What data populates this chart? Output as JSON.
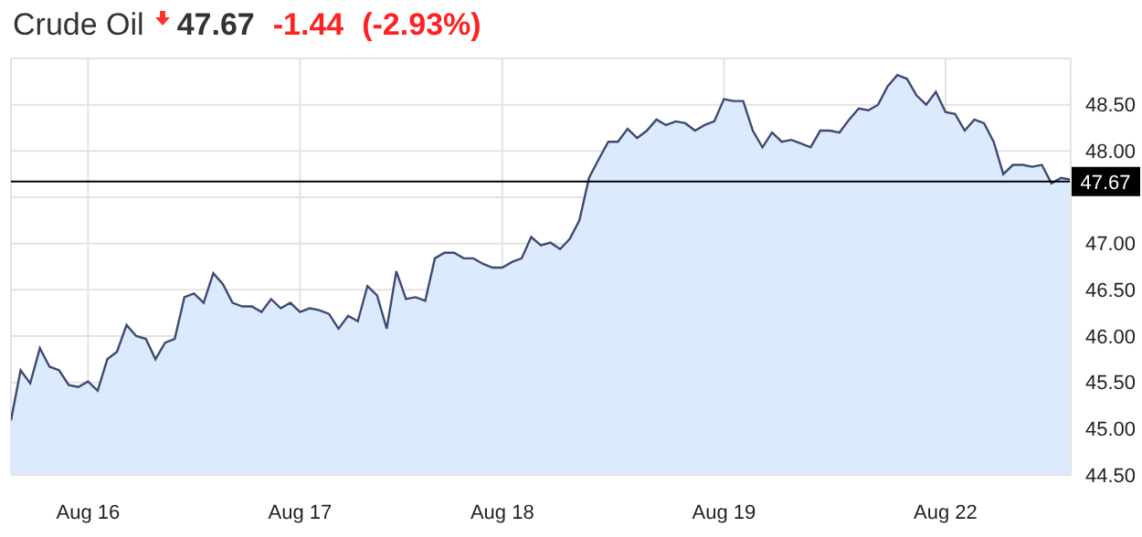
{
  "chart_data": {
    "type": "area",
    "title": "Crude Oil",
    "annotations": [
      "47.67",
      "-1.44",
      "(-2.93%)"
    ],
    "categories": [
      null,
      null,
      null,
      null,
      null,
      null,
      null,
      null,
      "Aug 16",
      null,
      null,
      null,
      null,
      null,
      null,
      null,
      null,
      null,
      null,
      null,
      null,
      null,
      null,
      null,
      null,
      null,
      null,
      null,
      null,
      null,
      "Aug 17",
      null,
      null,
      null,
      null,
      null,
      null,
      null,
      null,
      null,
      null,
      null,
      null,
      null,
      null,
      null,
      null,
      null,
      null,
      null,
      null,
      "Aug 18",
      null,
      null,
      null,
      null,
      null,
      null,
      null,
      null,
      null,
      null,
      null,
      null,
      null,
      null,
      null,
      null,
      null,
      null,
      null,
      null,
      null,
      null,
      "Aug 19",
      null,
      null,
      null,
      null,
      null,
      null,
      null,
      null,
      null,
      null,
      null,
      null,
      null,
      null,
      null,
      null,
      null,
      null,
      null,
      null,
      null,
      null,
      "Aug 22",
      null,
      null,
      null,
      null,
      null,
      null,
      null,
      null,
      null,
      null,
      null,
      null,
      null
    ],
    "series": [
      {
        "color": "#3f4a74",
        "values": [
          45.09,
          45.63,
          45.49,
          45.87,
          45.67,
          45.63,
          45.47,
          45.45,
          45.51,
          45.41,
          45.75,
          45.83,
          46.12,
          46.0,
          45.97,
          45.75,
          45.93,
          45.97,
          46.42,
          46.46,
          46.36,
          46.68,
          46.56,
          46.36,
          46.32,
          46.32,
          46.26,
          46.4,
          46.3,
          46.36,
          46.26,
          46.3,
          46.28,
          46.24,
          46.08,
          46.22,
          46.16,
          46.54,
          46.44,
          46.08,
          46.7,
          46.4,
          46.42,
          46.38,
          46.84,
          46.9,
          46.9,
          46.84,
          46.84,
          46.78,
          46.74,
          46.74,
          46.8,
          46.84,
          47.07,
          46.98,
          47.01,
          46.94,
          47.05,
          47.25,
          47.71,
          47.91,
          48.1,
          48.1,
          48.24,
          48.14,
          48.22,
          48.34,
          48.28,
          48.32,
          48.3,
          48.22,
          48.28,
          48.32,
          48.56,
          48.54,
          48.54,
          48.22,
          48.04,
          48.2,
          48.1,
          48.12,
          48.08,
          48.04,
          48.22,
          48.22,
          48.2,
          48.34,
          48.46,
          48.44,
          48.5,
          48.7,
          48.82,
          48.78,
          48.6,
          48.5,
          48.64,
          48.42,
          48.4,
          48.22,
          48.34,
          48.3,
          48.1,
          47.75,
          47.85,
          47.85,
          47.83,
          47.85,
          47.65,
          47.71,
          47.69
        ]
      }
    ],
    "ylim": [
      44.5,
      49.0
    ],
    "yticks": [
      {
        "value": 44.5,
        "label": "44.50"
      },
      {
        "value": 45,
        "label": "45.00"
      },
      {
        "value": 45.5,
        "label": "45.50"
      },
      {
        "value": 46,
        "label": "46.00"
      },
      {
        "value": 46.5,
        "label": "46.50"
      },
      {
        "value": 47,
        "label": "47.00"
      },
      {
        "value": 47.5,
        "label": null
      },
      {
        "value": 48,
        "label": "48.00"
      },
      {
        "value": 48.5,
        "label": "48.50"
      }
    ],
    "ref_lines": [
      {
        "axis": "y",
        "value": 47.67,
        "label": "47.67",
        "color": "#000000"
      }
    ],
    "grid": true
  }
}
